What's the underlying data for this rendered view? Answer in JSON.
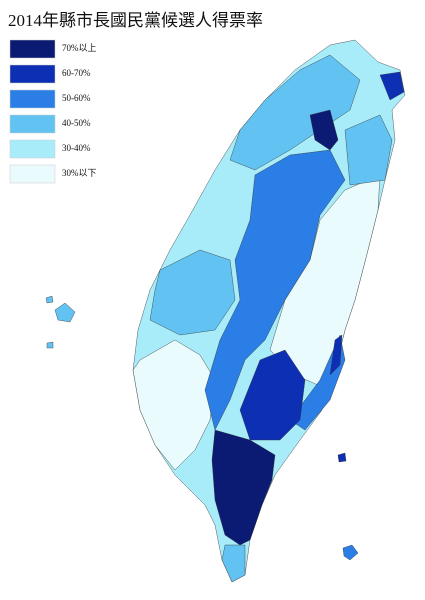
{
  "title": "2014年縣市長國民黨候選人得票率",
  "legend": [
    {
      "label": "70%以上",
      "color": "#0b1a72"
    },
    {
      "label": "60-70%",
      "color": "#0d2fb4"
    },
    {
      "label": "50-60%",
      "color": "#2a7ee6"
    },
    {
      "label": "40-50%",
      "color": "#62c2f2"
    },
    {
      "label": "30-40%",
      "color": "#a8ecfa"
    },
    {
      "label": "30%以下",
      "color": "#eafbfd"
    }
  ]
}
